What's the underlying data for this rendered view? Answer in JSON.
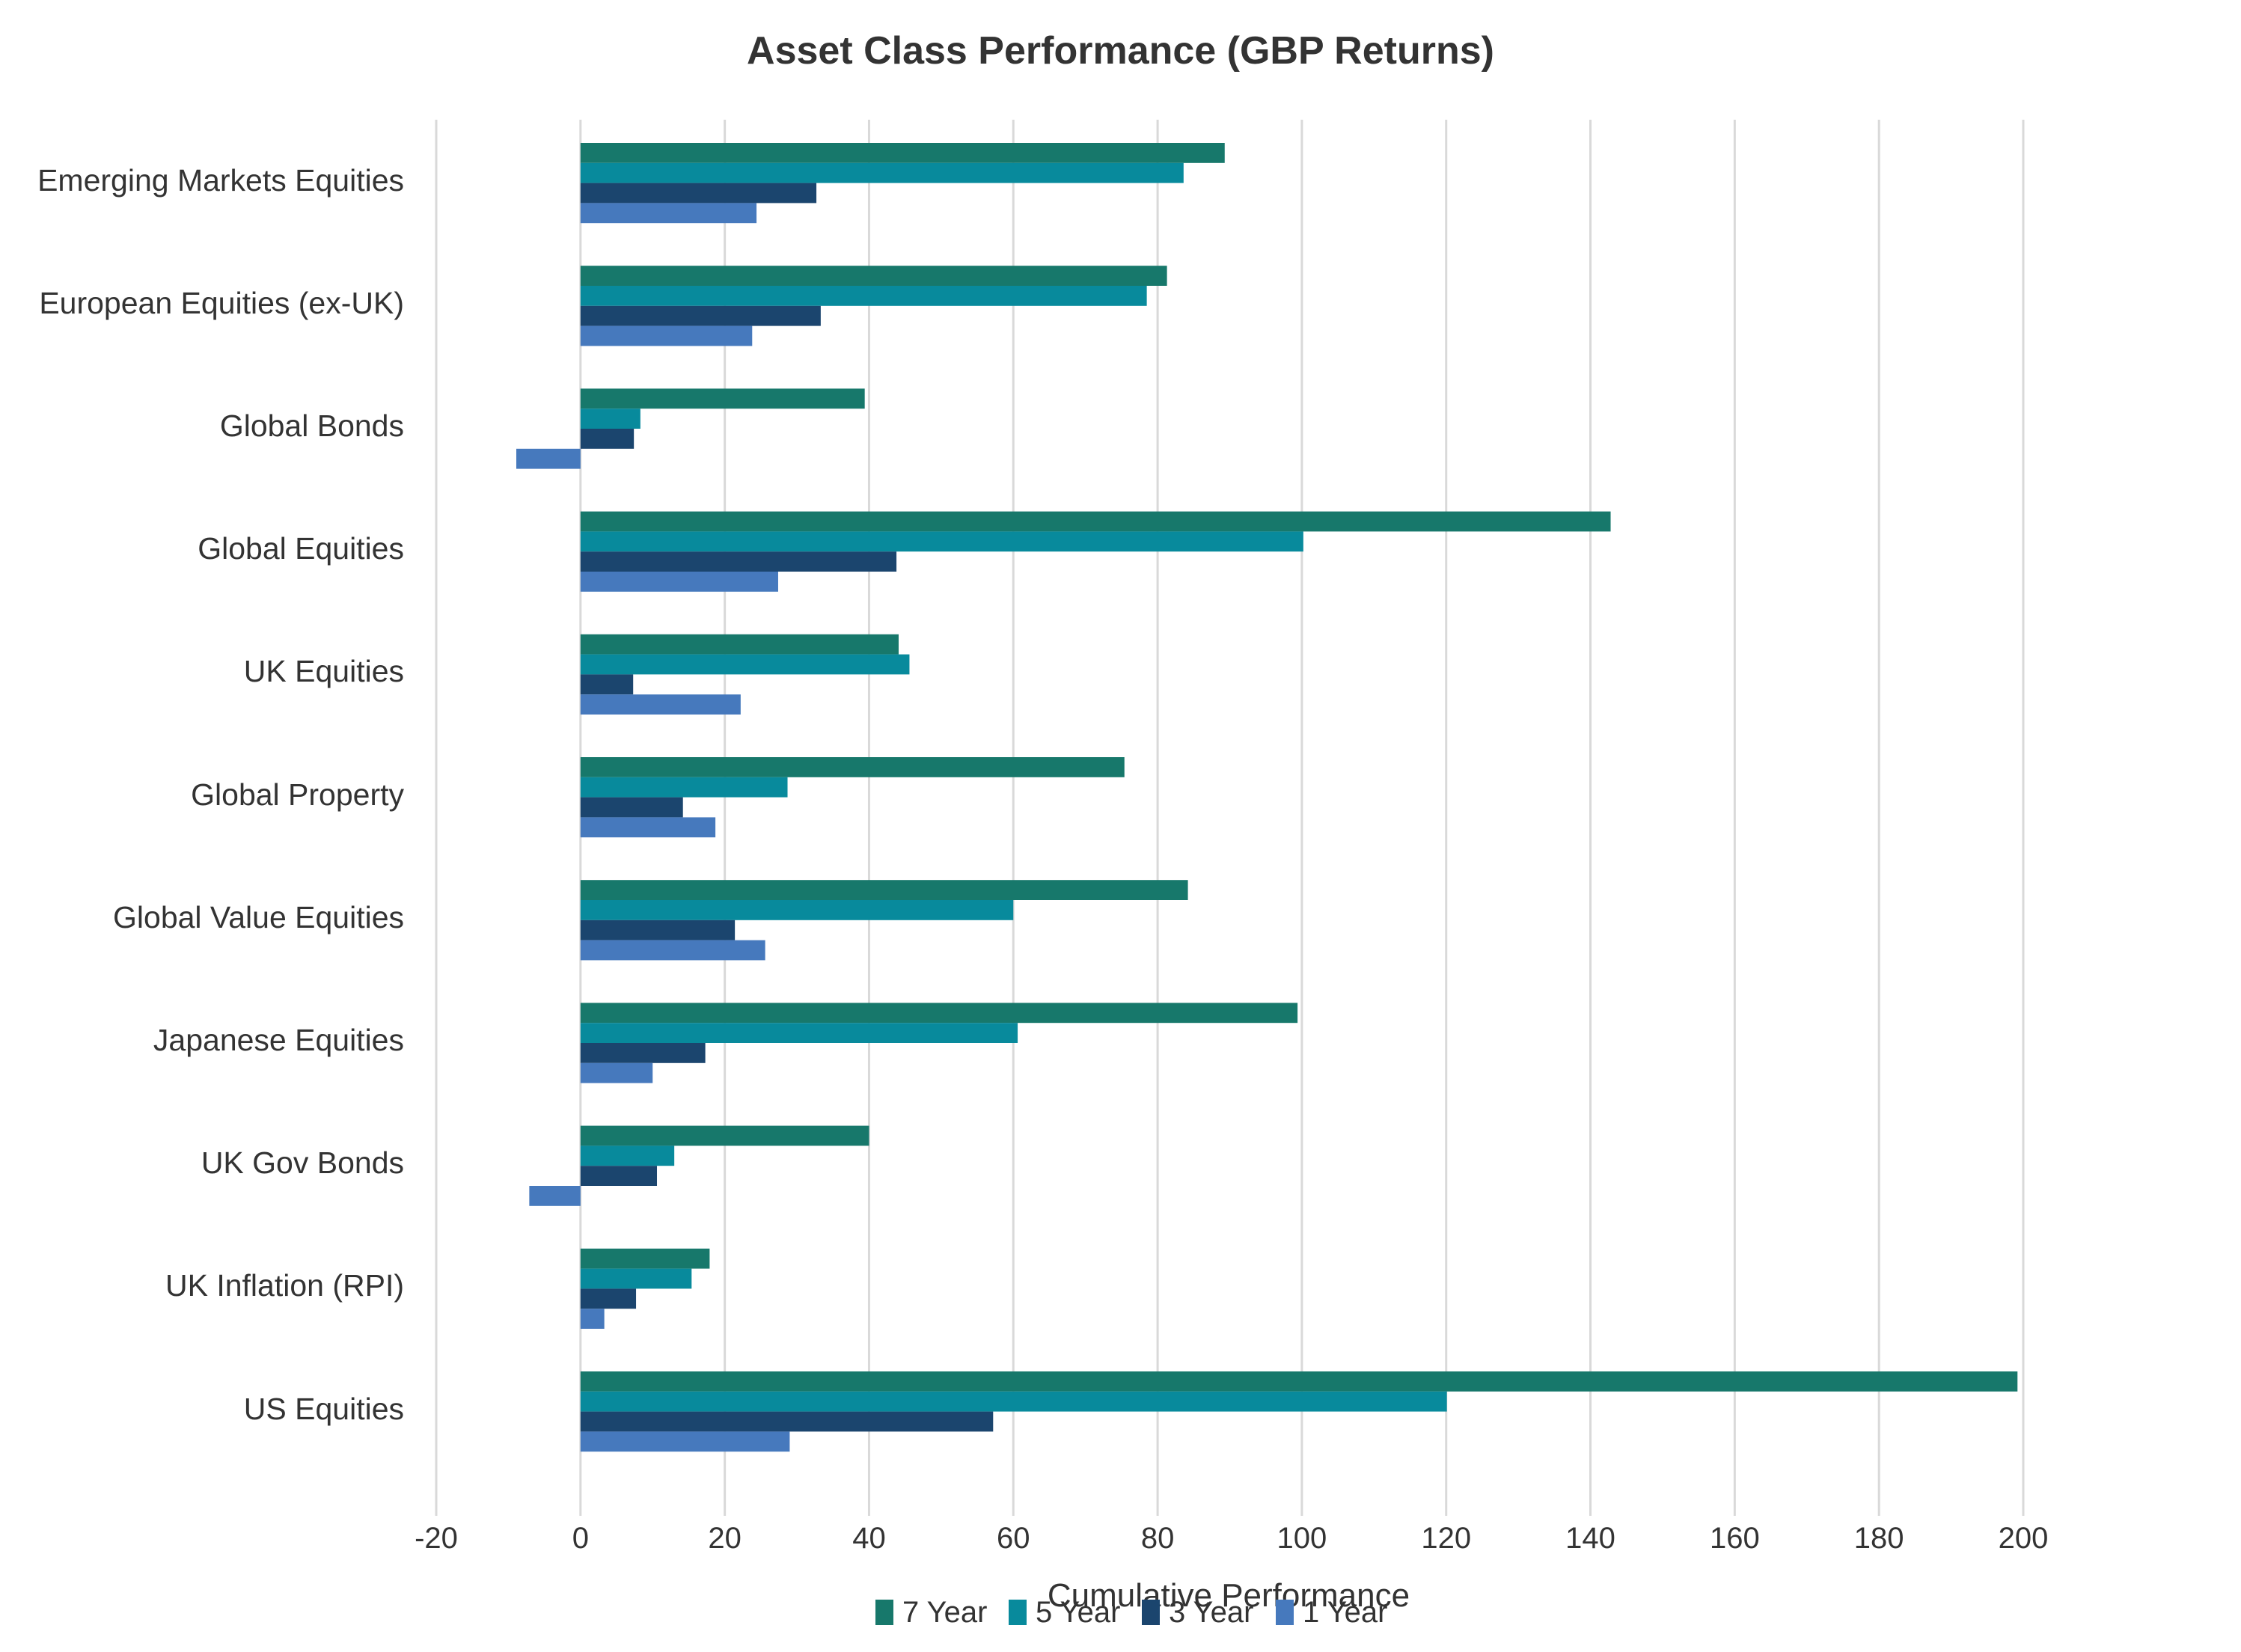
{
  "chart_data": {
    "type": "bar",
    "orientation": "horizontal",
    "title": "Asset Class Performance (GBP Returns)",
    "xlabel": "Cumulative Performance",
    "ylabel": "",
    "xlim": [
      -20,
      200
    ],
    "xticks": [
      -20,
      0,
      20,
      40,
      60,
      80,
      100,
      120,
      140,
      160,
      180,
      200
    ],
    "xtick_labels": [
      "-20",
      "0",
      "20",
      "40",
      "60",
      "80",
      "100",
      "120",
      "140",
      "160",
      "180",
      "200"
    ],
    "grid": "vertical",
    "legend_position": "bottom",
    "categories": [
      "Emerging Markets Equities",
      "European Equities (ex-UK)",
      "Global Bonds",
      "Global Equities",
      "UK Equities",
      "Global Property",
      "Global Value Equities",
      "Japanese Equities",
      "UK Gov Bonds",
      "UK Inflation (RPI)",
      "US Equities"
    ],
    "series": [
      {
        "name": "7 Year",
        "color": "#17786b",
        "values": [
          89.3,
          81.3,
          39.4,
          142.8,
          44.1,
          75.4,
          84.2,
          99.4,
          40.0,
          17.9,
          199.2
        ]
      },
      {
        "name": "5 Year",
        "color": "#088a9c",
        "values": [
          83.6,
          78.5,
          8.3,
          100.2,
          45.6,
          28.7,
          60.0,
          60.6,
          13.0,
          15.4,
          120.1
        ]
      },
      {
        "name": "3 Year",
        "color": "#1b456e",
        "values": [
          32.7,
          33.3,
          7.4,
          43.8,
          7.3,
          14.2,
          21.4,
          17.3,
          10.6,
          7.7,
          57.2
        ]
      },
      {
        "name": "1 Year",
        "color": "#4679bd",
        "values": [
          24.4,
          23.8,
          -8.9,
          27.4,
          22.2,
          18.7,
          25.6,
          10.0,
          -7.1,
          3.3,
          29.0
        ]
      }
    ]
  }
}
